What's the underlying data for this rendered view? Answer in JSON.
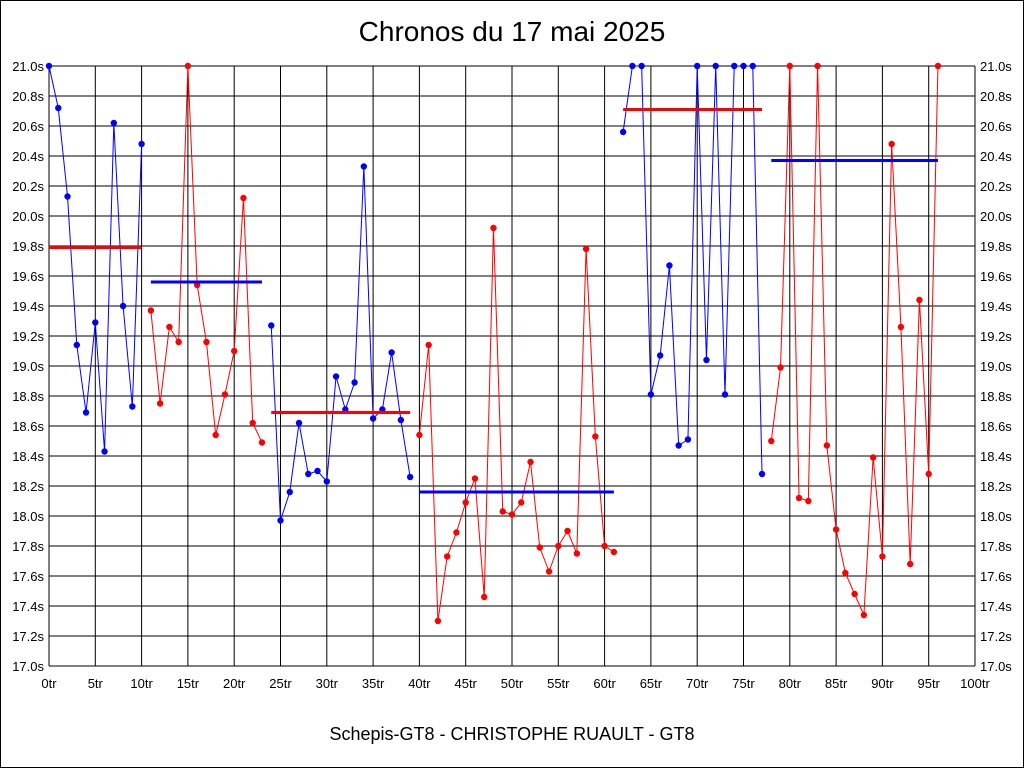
{
  "chart_data": {
    "type": "line",
    "title": "Chronos du 17 mai 2025",
    "footer": "Schepis-GT8 - CHRISTOPHE RUAULT - GT8",
    "x_ticks": [
      "0tr",
      "5tr",
      "10tr",
      "15tr",
      "20tr",
      "25tr",
      "30tr",
      "35tr",
      "40tr",
      "45tr",
      "50tr",
      "55tr",
      "60tr",
      "65tr",
      "70tr",
      "75tr",
      "80tr",
      "85tr",
      "90tr",
      "95tr",
      "100tr"
    ],
    "y_ticks": [
      "17.0s",
      "17.2s",
      "17.4s",
      "17.6s",
      "17.8s",
      "18.0s",
      "18.2s",
      "18.4s",
      "18.6s",
      "18.8s",
      "19.0s",
      "19.2s",
      "19.4s",
      "19.6s",
      "19.8s",
      "20.0s",
      "20.2s",
      "20.4s",
      "20.6s",
      "20.8s",
      "21.0s"
    ],
    "xlim": [
      0,
      100
    ],
    "ylim": [
      17.0,
      21.0
    ],
    "grid": true,
    "colors": {
      "blue": "#0000ff",
      "red": "#ff0000"
    },
    "series": [
      {
        "color": "blue",
        "x": [
          0,
          1,
          2,
          3,
          4,
          5,
          6,
          7,
          8,
          9,
          10
        ],
        "y": [
          21.0,
          20.72,
          20.13,
          19.14,
          18.69,
          19.29,
          18.43,
          20.62,
          19.4,
          18.73,
          20.48
        ]
      },
      {
        "color": "red",
        "x": [
          11,
          12,
          13,
          14,
          15,
          16,
          17,
          18,
          19,
          20,
          21,
          22,
          23
        ],
        "y": [
          19.37,
          18.75,
          19.26,
          19.16,
          21.0,
          19.54,
          19.16,
          18.54,
          18.81,
          19.1,
          20.12,
          18.62,
          18.49
        ]
      },
      {
        "color": "blue",
        "x": [
          24,
          25,
          26,
          27,
          28,
          29,
          30,
          31,
          32,
          33,
          34,
          35,
          36,
          37,
          38,
          39
        ],
        "y": [
          19.27,
          17.97,
          18.16,
          18.62,
          18.28,
          18.3,
          18.23,
          18.93,
          18.71,
          18.89,
          20.33,
          18.65,
          18.71,
          19.09,
          18.64,
          18.26
        ]
      },
      {
        "color": "red",
        "x": [
          40,
          41,
          42,
          43,
          44,
          45,
          46,
          47,
          48,
          49,
          50,
          51,
          52,
          53,
          54,
          55,
          56,
          57,
          58,
          59,
          60,
          61
        ],
        "y": [
          18.54,
          19.14,
          17.3,
          17.73,
          17.89,
          18.09,
          18.25,
          17.46,
          19.92,
          18.03,
          18.01,
          18.09,
          18.36,
          17.79,
          17.63,
          17.8,
          17.9,
          17.75,
          19.78,
          18.53,
          17.8,
          17.76
        ]
      },
      {
        "color": "blue",
        "x": [
          62,
          63,
          64,
          65,
          66,
          67,
          68,
          69,
          70,
          71,
          72,
          73,
          74,
          75,
          76,
          77
        ],
        "y": [
          20.56,
          21.0,
          21.0,
          18.81,
          19.07,
          19.67,
          18.47,
          18.51,
          21.0,
          19.04,
          21.0,
          18.81,
          21.0,
          21.0,
          21.0,
          18.28
        ]
      },
      {
        "color": "red",
        "x": [
          78,
          79,
          80,
          81,
          82,
          83,
          84,
          85,
          86,
          87,
          88,
          89,
          90,
          91,
          92,
          93,
          94,
          95,
          96
        ],
        "y": [
          18.5,
          18.99,
          21.0,
          18.12,
          18.1,
          21.0,
          18.47,
          17.91,
          17.62,
          17.48,
          17.34,
          18.39,
          17.73,
          20.48,
          19.26,
          17.68,
          19.44,
          18.28,
          21.0
        ]
      }
    ],
    "averages": [
      {
        "color": "red",
        "x_from": 0,
        "x_to": 10,
        "y": 19.79
      },
      {
        "color": "blue",
        "x_from": 11,
        "x_to": 23,
        "y": 19.56
      },
      {
        "color": "red",
        "x_from": 24,
        "x_to": 39,
        "y": 18.69
      },
      {
        "color": "blue",
        "x_from": 40,
        "x_to": 61,
        "y": 18.16
      },
      {
        "color": "red",
        "x_from": 62,
        "x_to": 77,
        "y": 20.71
      },
      {
        "color": "blue",
        "x_from": 78,
        "x_to": 96,
        "y": 20.37
      }
    ]
  }
}
